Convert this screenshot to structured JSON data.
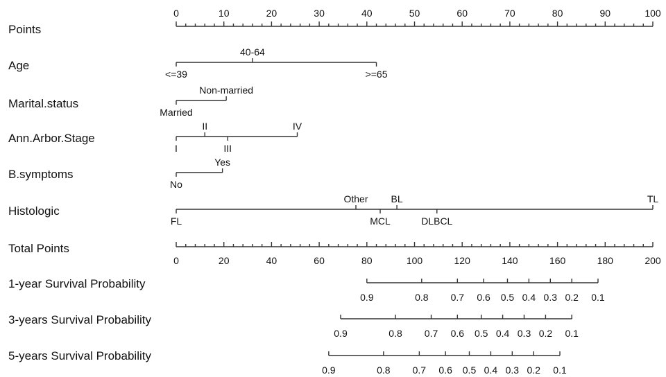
{
  "chart_data": {
    "type": "nomogram",
    "points_scale": {
      "label": "Points",
      "range": [
        0,
        100
      ],
      "major_ticks": [
        0,
        10,
        20,
        30,
        40,
        50,
        60,
        70,
        80,
        90,
        100
      ],
      "minor_step": 2
    },
    "variables": [
      {
        "name": "Age",
        "levels": [
          {
            "label": "<=39",
            "points": 0,
            "side": "below"
          },
          {
            "label": "40-64",
            "points": 16,
            "side": "above"
          },
          {
            "label": ">=65",
            "points": 42,
            "side": "below"
          }
        ]
      },
      {
        "name": "Marital.status",
        "levels": [
          {
            "label": "Married",
            "points": 0,
            "side": "below"
          },
          {
            "label": "Non-married",
            "points": 10.5,
            "side": "above"
          }
        ]
      },
      {
        "name": "Ann.Arbor.Stage",
        "levels": [
          {
            "label": "I",
            "points": 0,
            "side": "below"
          },
          {
            "label": "II",
            "points": 6,
            "side": "above"
          },
          {
            "label": "III",
            "points": 10.8,
            "side": "below"
          },
          {
            "label": "IV",
            "points": 25.4,
            "side": "above"
          }
        ]
      },
      {
        "name": "B.symptoms",
        "levels": [
          {
            "label": "No",
            "points": 0,
            "side": "below"
          },
          {
            "label": "Yes",
            "points": 9.7,
            "side": "above"
          }
        ]
      },
      {
        "name": "Histologic",
        "levels": [
          {
            "label": "FL",
            "points": 0,
            "side": "below"
          },
          {
            "label": "Other",
            "points": 37.7,
            "side": "above"
          },
          {
            "label": "MCL",
            "points": 42.8,
            "side": "below"
          },
          {
            "label": "BL",
            "points": 46.3,
            "side": "above"
          },
          {
            "label": "DLBCL",
            "points": 54.7,
            "side": "below"
          },
          {
            "label": "TL",
            "points": 100,
            "side": "above"
          }
        ]
      }
    ],
    "total_points_scale": {
      "label": "Total Points",
      "range": [
        0,
        200
      ],
      "major_ticks": [
        0,
        20,
        40,
        60,
        80,
        100,
        120,
        140,
        160,
        180,
        200
      ],
      "minor_step": 4
    },
    "survival_scales": [
      {
        "name": "1-year Survival Probability",
        "line_range_total_points": [
          80,
          177
        ],
        "ticks": [
          {
            "label": "0.9",
            "total_points": 80
          },
          {
            "label": "0.8",
            "total_points": 103
          },
          {
            "label": "0.7",
            "total_points": 118
          },
          {
            "label": "0.6",
            "total_points": 129
          },
          {
            "label": "0.5",
            "total_points": 139
          },
          {
            "label": "0.4",
            "total_points": 148
          },
          {
            "label": "0.3",
            "total_points": 157
          },
          {
            "label": "0.2",
            "total_points": 166
          },
          {
            "label": "0.1",
            "total_points": 177
          }
        ]
      },
      {
        "name": "3-years Survival Probability",
        "line_range_total_points": [
          69,
          166
        ],
        "ticks": [
          {
            "label": "0.9",
            "total_points": 69
          },
          {
            "label": "0.8",
            "total_points": 92
          },
          {
            "label": "0.7",
            "total_points": 107
          },
          {
            "label": "0.6",
            "total_points": 118
          },
          {
            "label": "0.5",
            "total_points": 128
          },
          {
            "label": "0.4",
            "total_points": 137
          },
          {
            "label": "0.3",
            "total_points": 146
          },
          {
            "label": "0.2",
            "total_points": 155
          },
          {
            "label": "0.1",
            "total_points": 166
          }
        ]
      },
      {
        "name": "5-years Survival Probability",
        "line_range_total_points": [
          64,
          161
        ],
        "ticks": [
          {
            "label": "0.9",
            "total_points": 64
          },
          {
            "label": "0.8",
            "total_points": 87
          },
          {
            "label": "0.7",
            "total_points": 102
          },
          {
            "label": "0.6",
            "total_points": 113
          },
          {
            "label": "0.5",
            "total_points": 123
          },
          {
            "label": "0.4",
            "total_points": 132
          },
          {
            "label": "0.3",
            "total_points": 141
          },
          {
            "label": "0.2",
            "total_points": 150
          },
          {
            "label": "0.1",
            "total_points": 161
          }
        ]
      }
    ]
  }
}
